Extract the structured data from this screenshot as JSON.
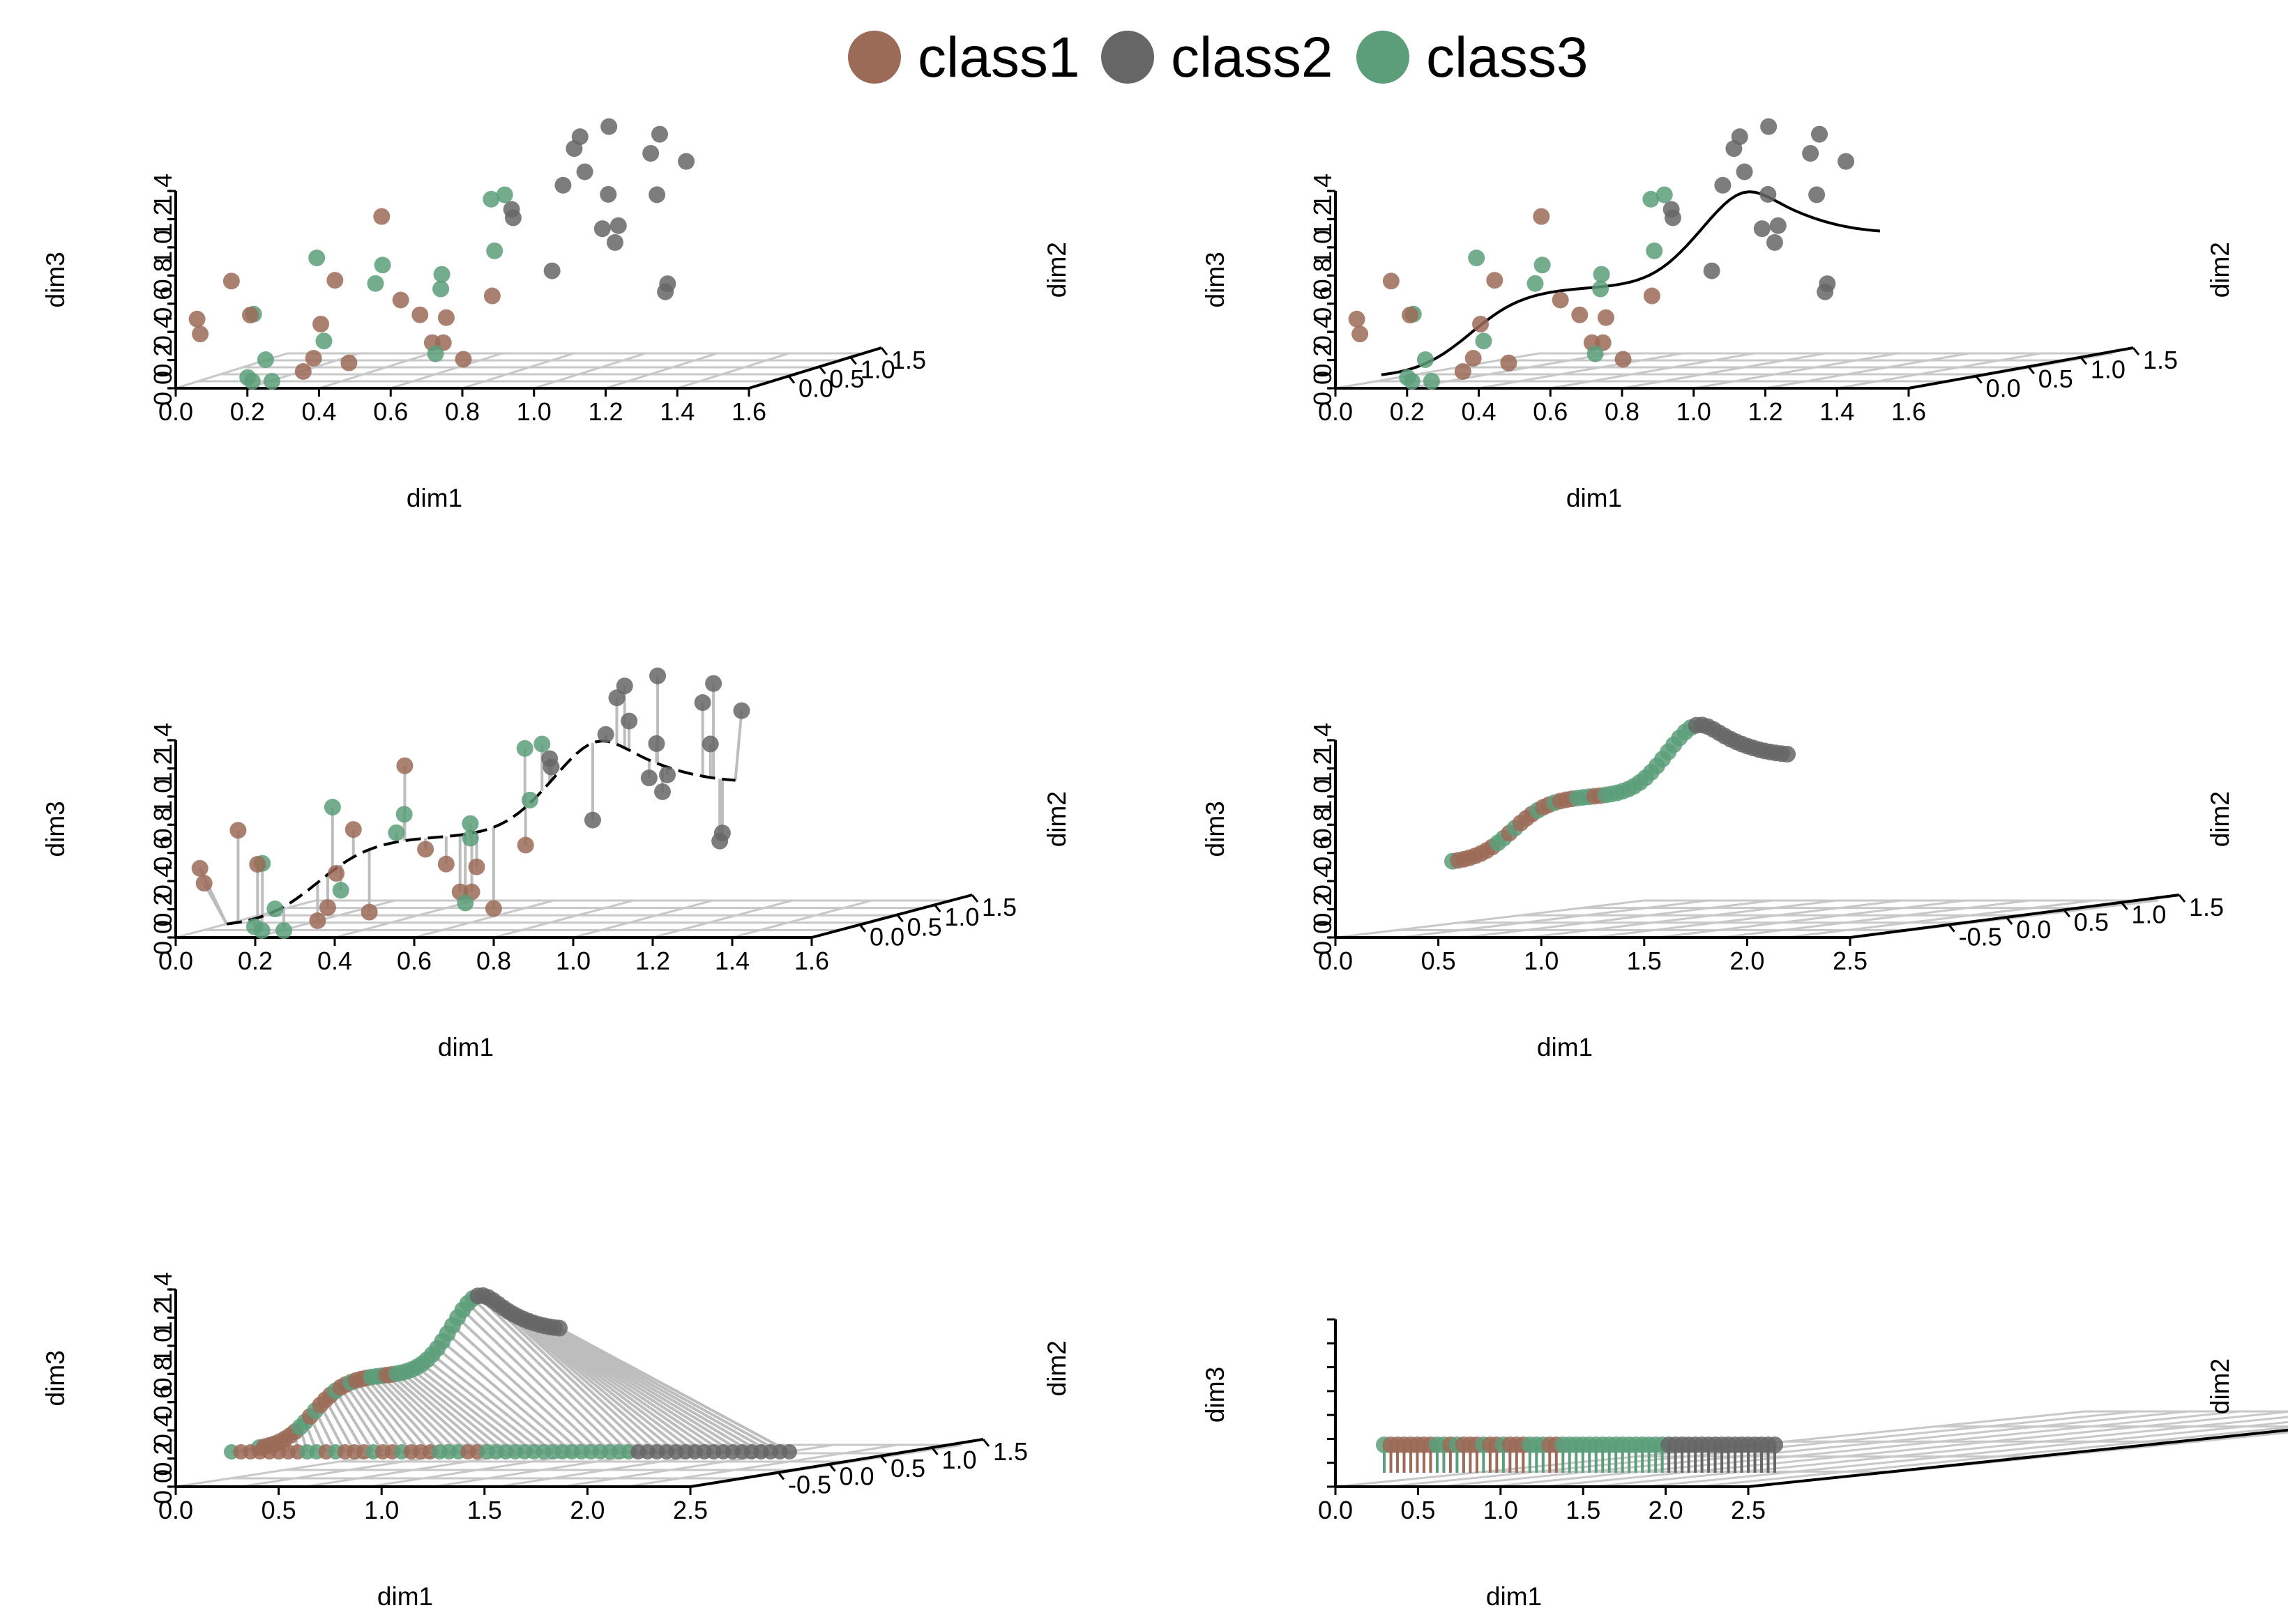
{
  "legend": {
    "entries": [
      {
        "label": "class1",
        "color": "#9b6b57"
      },
      {
        "label": "class2",
        "color": "#666666"
      },
      {
        "label": "class3",
        "color": "#5c9e7a"
      }
    ]
  },
  "chart_data": [
    {
      "type": "scatter",
      "view": "raw scatter",
      "xlabel": "dim1",
      "ylabel": "dim2",
      "zlabel": "dim3",
      "x_ticks": [
        "0.0",
        "0.2",
        "0.4",
        "0.6",
        "0.8",
        "1.0",
        "1.2",
        "1.4",
        "1.6"
      ],
      "y_ticks": [
        "0.0",
        "0.5",
        "1.0",
        "1.5"
      ],
      "z_ticks": [
        "0.0",
        "0.2",
        "0.4",
        "0.6",
        "0.8",
        "1.0",
        "1.2",
        "1.4"
      ],
      "xlim": [
        0,
        1.6
      ],
      "ylim": [
        0,
        1.5
      ],
      "zlim": [
        0,
        1.4
      ],
      "grid": "floor only",
      "legend": "top-center"
    },
    {
      "type": "scatter",
      "view": "scatter with fitted principal curve (solid black)",
      "xlabel": "dim1",
      "ylabel": "dim2",
      "zlabel": "dim3",
      "x_ticks": [
        "0.0",
        "0.2",
        "0.4",
        "0.6",
        "0.8",
        "1.0",
        "1.2",
        "1.4",
        "1.6"
      ],
      "y_ticks": [
        "0.0",
        "0.5",
        "1.0",
        "1.5"
      ],
      "z_ticks": [
        "0.0",
        "0.2",
        "0.4",
        "0.6",
        "0.8",
        "1.0",
        "1.2",
        "1.4"
      ],
      "xlim": [
        0,
        1.6
      ],
      "ylim": [
        0,
        1.5
      ],
      "zlim": [
        0,
        1.4
      ],
      "curve": "black solid"
    },
    {
      "type": "scatter",
      "view": "points connected to dashed principal curve by gray projection segments",
      "xlabel": "dim1",
      "ylabel": "dim2",
      "zlabel": "dim3",
      "x_ticks": [
        "0.0",
        "0.2",
        "0.4",
        "0.6",
        "0.8",
        "1.0",
        "1.2",
        "1.4",
        "1.6"
      ],
      "y_ticks": [
        "0.0",
        "0.5",
        "1.0",
        "1.5"
      ],
      "z_ticks": [
        "0.0",
        "0.2",
        "0.4",
        "0.6",
        "0.8",
        "1.0",
        "1.2",
        "1.4"
      ],
      "xlim": [
        0,
        1.6
      ],
      "ylim": [
        0,
        1.5
      ],
      "zlim": [
        0,
        1.4
      ],
      "curve": "black dashed"
    },
    {
      "type": "scatter",
      "view": "points projected onto the curve",
      "xlabel": "dim1",
      "ylabel": "dim2",
      "zlabel": "dim3",
      "x_ticks": [
        "0.0",
        "0.5",
        "1.0",
        "1.5",
        "2.0",
        "2.5"
      ],
      "y_ticks": [
        "-0.5",
        "0.0",
        "0.5",
        "1.0",
        "1.5"
      ],
      "z_ticks": [
        "0.0",
        "0.2",
        "0.4",
        "0.6",
        "0.8",
        "1.0",
        "1.2",
        "1.4"
      ],
      "xlim": [
        0,
        2.5
      ],
      "ylim": [
        -0.5,
        1.5
      ],
      "zlim": [
        0,
        1.4
      ]
    },
    {
      "type": "scatter",
      "view": "curve points with segments down to flattened floor positions",
      "xlabel": "dim1",
      "ylabel": "dim2",
      "zlabel": "dim3",
      "x_ticks": [
        "0.0",
        "0.5",
        "1.0",
        "1.5",
        "2.0",
        "2.5"
      ],
      "y_ticks": [
        "-0.5",
        "0.0",
        "0.5",
        "1.0",
        "1.5"
      ],
      "z_ticks": [
        "0.0",
        "0.2",
        "0.4",
        "0.6",
        "0.8",
        "1.0",
        "1.2",
        "1.4"
      ],
      "xlim": [
        0,
        2.5
      ],
      "ylim": [
        -0.5,
        1.5
      ],
      "zlim": [
        0,
        1.4
      ]
    },
    {
      "type": "scatter",
      "view": "flattened pseudotime strip (lollipops)",
      "xlabel": "dim1",
      "ylabel": "dim2",
      "zlabel": "dim3",
      "x_ticks": [
        "0.0",
        "0.5",
        "1.0",
        "1.5",
        "2.0",
        "2.5"
      ],
      "y_ticks": [],
      "z_ticks": [],
      "xlim": [
        0,
        2.5
      ]
    }
  ]
}
